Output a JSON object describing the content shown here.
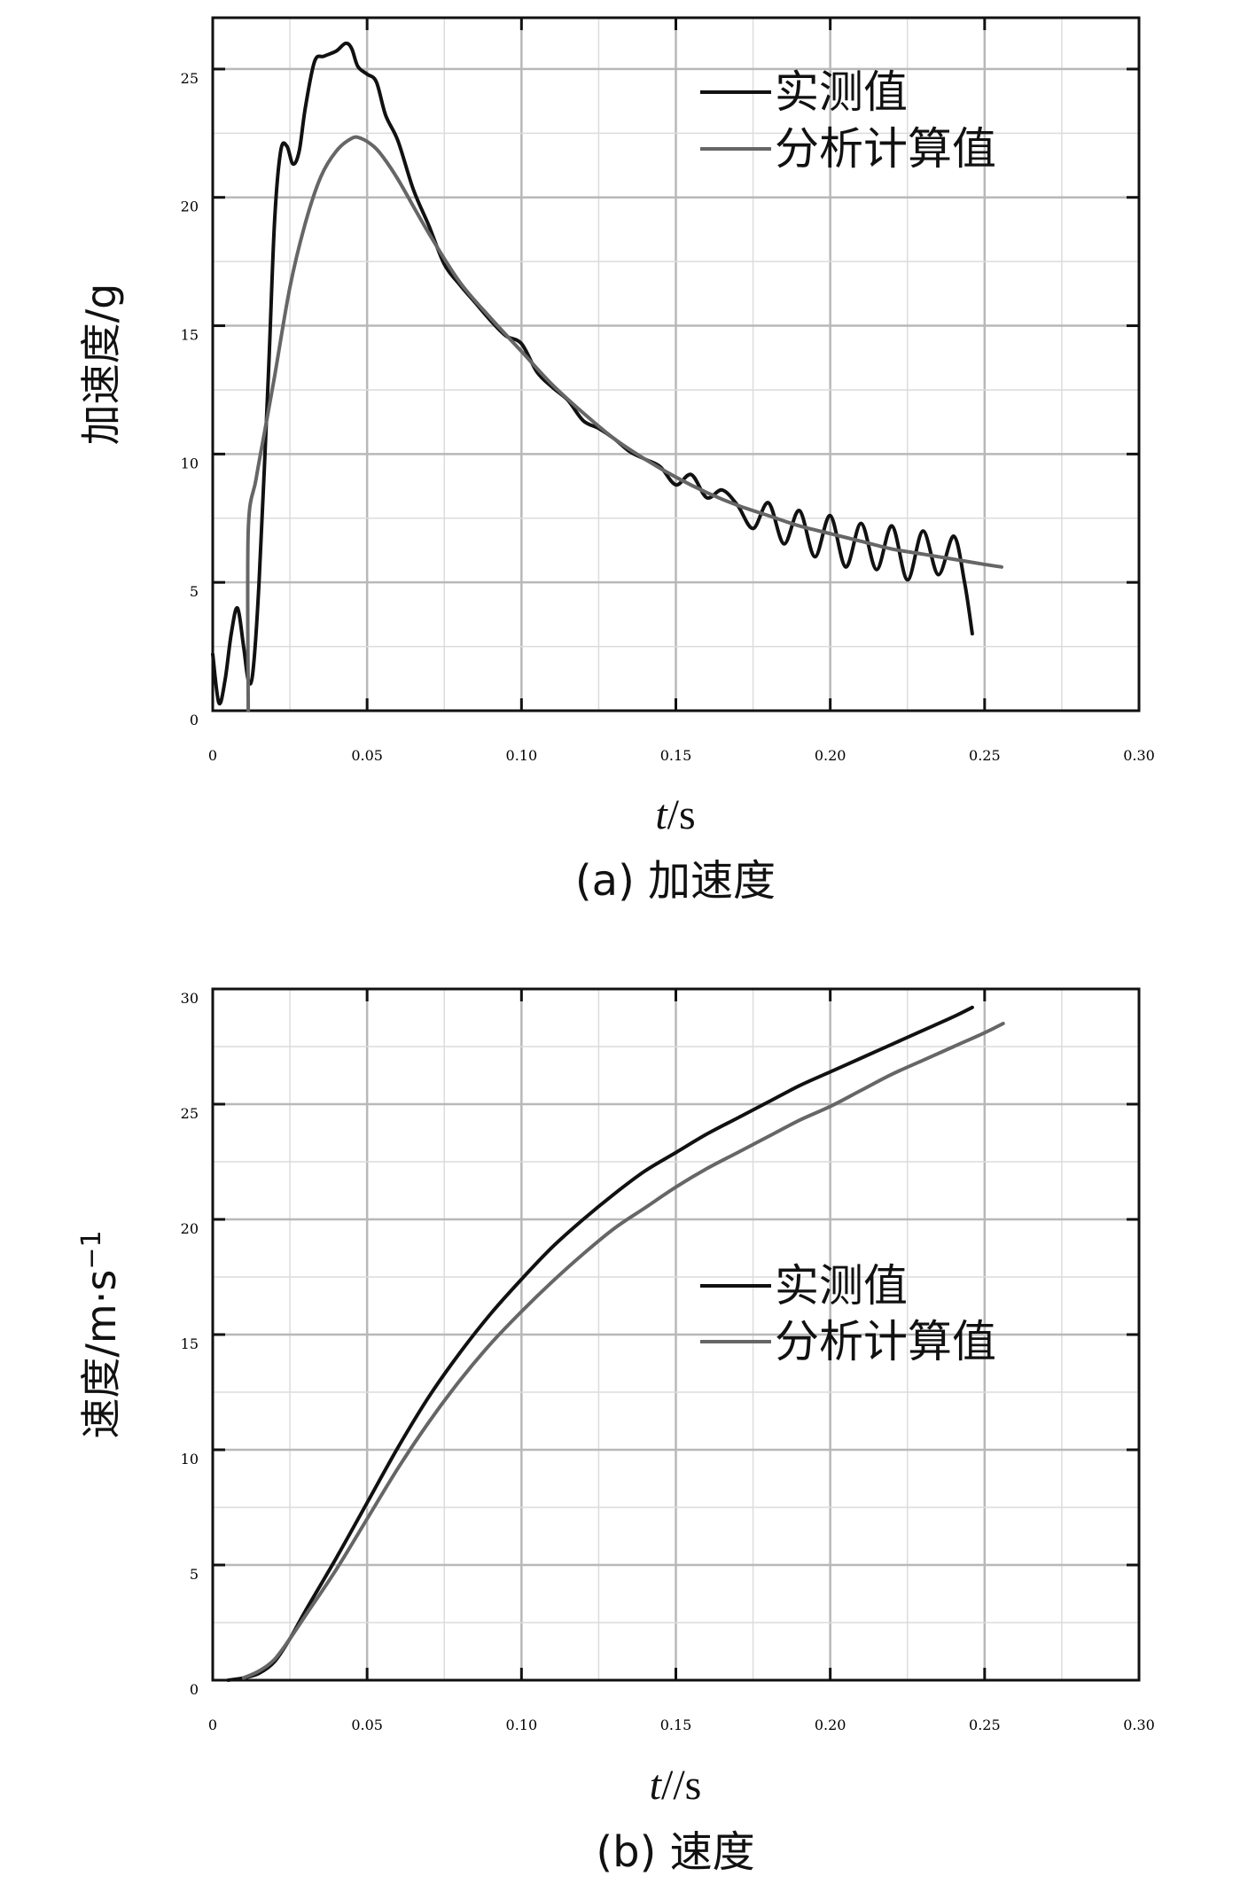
{
  "chart_data": [
    {
      "type": "line",
      "xlim": [
        0,
        0.3
      ],
      "ylim": [
        0,
        27
      ],
      "xticks": [
        0,
        0.05,
        0.1,
        0.15,
        0.2,
        0.25,
        0.3
      ],
      "xtick_labels": [
        "0",
        "0.05",
        "0.10",
        "0.15",
        "0.20",
        "0.25",
        "0.30"
      ],
      "yticks": [
        0,
        5,
        10,
        15,
        20,
        25
      ],
      "ytick_labels": [
        "0",
        "5",
        "10",
        "15",
        "20",
        "25"
      ],
      "ylabel": "加速度/g",
      "xlabel_italic": "t",
      "xlabel_rest": "/s",
      "caption": "(a) 加速度",
      "legend_position": "top-right",
      "grid": true,
      "series": [
        {
          "name": "实测值",
          "color": "#111111",
          "x": [
            0.0,
            0.002,
            0.004,
            0.006,
            0.008,
            0.01,
            0.0115,
            0.013,
            0.015,
            0.018,
            0.02,
            0.022,
            0.024,
            0.026,
            0.028,
            0.03,
            0.033,
            0.036,
            0.04,
            0.043,
            0.045,
            0.047,
            0.05,
            0.053,
            0.056,
            0.06,
            0.065,
            0.07,
            0.075,
            0.08,
            0.085,
            0.09,
            0.095,
            0.1,
            0.105,
            0.11,
            0.115,
            0.12,
            0.125,
            0.13,
            0.135,
            0.14,
            0.145,
            0.15,
            0.155,
            0.16,
            0.165,
            0.17,
            0.175,
            0.18,
            0.185,
            0.19,
            0.195,
            0.2,
            0.205,
            0.21,
            0.215,
            0.22,
            0.225,
            0.23,
            0.235,
            0.24,
            0.2435,
            0.246
          ],
          "y": [
            2.2,
            0.3,
            1.2,
            3.0,
            4.0,
            2.5,
            1.2,
            1.5,
            5.0,
            13.0,
            19.0,
            21.8,
            22.0,
            21.3,
            21.8,
            23.5,
            25.3,
            25.5,
            25.7,
            26.0,
            25.8,
            25.1,
            24.8,
            24.5,
            23.2,
            22.2,
            20.3,
            18.9,
            17.4,
            16.6,
            15.9,
            15.2,
            14.6,
            14.3,
            13.2,
            12.6,
            12.1,
            11.3,
            11.0,
            10.6,
            10.1,
            9.8,
            9.5,
            8.8,
            9.2,
            8.3,
            8.6,
            8.0,
            7.1,
            8.1,
            6.5,
            7.8,
            6.0,
            7.6,
            5.6,
            7.3,
            5.5,
            7.2,
            5.1,
            7.0,
            5.3,
            6.8,
            5.0,
            3.0
          ]
        },
        {
          "name": "分析计算值",
          "color": "#666666",
          "x": [
            0.0115,
            0.0115,
            0.014,
            0.017,
            0.02,
            0.025,
            0.03,
            0.035,
            0.04,
            0.045,
            0.048,
            0.052,
            0.055,
            0.06,
            0.07,
            0.08,
            0.09,
            0.1,
            0.11,
            0.12,
            0.13,
            0.14,
            0.15,
            0.16,
            0.17,
            0.18,
            0.19,
            0.2,
            0.21,
            0.22,
            0.23,
            0.24,
            0.25,
            0.2555
          ],
          "y": [
            0,
            7.0,
            9.0,
            11.0,
            13.0,
            16.5,
            19.0,
            20.8,
            21.8,
            22.3,
            22.3,
            22.0,
            21.6,
            20.7,
            18.6,
            16.7,
            15.3,
            14.0,
            12.7,
            11.6,
            10.6,
            9.8,
            9.1,
            8.5,
            8.0,
            7.6,
            7.2,
            6.9,
            6.6,
            6.3,
            6.1,
            5.9,
            5.7,
            5.6
          ]
        }
      ]
    },
    {
      "type": "line",
      "xlim": [
        0,
        0.3
      ],
      "ylim": [
        0,
        30
      ],
      "xticks": [
        0,
        0.05,
        0.1,
        0.15,
        0.2,
        0.25,
        0.3
      ],
      "xtick_labels": [
        "0",
        "0.05",
        "0.10",
        "0.15",
        "0.20",
        "0.25",
        "0.30"
      ],
      "yticks": [
        0,
        5,
        10,
        15,
        20,
        25,
        30
      ],
      "ytick_labels": [
        "0",
        "5",
        "10",
        "15",
        "20",
        "25",
        "30"
      ],
      "ylabel": "速度/m·s",
      "ylabel_superscript": "−1",
      "xlabel_italic": "t",
      "xlabel_rest": "//s",
      "caption": "(b) 速度",
      "legend_position": "center-right",
      "grid": true,
      "series": [
        {
          "name": "实测值",
          "color": "#111111",
          "x": [
            0.005,
            0.01,
            0.015,
            0.02,
            0.025,
            0.03,
            0.04,
            0.05,
            0.06,
            0.07,
            0.08,
            0.09,
            0.1,
            0.11,
            0.12,
            0.13,
            0.14,
            0.15,
            0.16,
            0.17,
            0.18,
            0.19,
            0.2,
            0.21,
            0.22,
            0.23,
            0.24,
            0.246
          ],
          "y": [
            0,
            0.1,
            0.3,
            0.8,
            1.8,
            3.0,
            5.3,
            7.7,
            10.1,
            12.3,
            14.2,
            15.9,
            17.4,
            18.8,
            20.0,
            21.1,
            22.1,
            22.9,
            23.7,
            24.4,
            25.1,
            25.8,
            26.4,
            27.0,
            27.6,
            28.2,
            28.8,
            29.2
          ]
        },
        {
          "name": "分析计算值",
          "color": "#666666",
          "x": [
            0.01,
            0.015,
            0.02,
            0.025,
            0.03,
            0.04,
            0.05,
            0.06,
            0.07,
            0.08,
            0.09,
            0.1,
            0.11,
            0.12,
            0.13,
            0.14,
            0.15,
            0.16,
            0.17,
            0.18,
            0.19,
            0.2,
            0.21,
            0.22,
            0.23,
            0.24,
            0.25,
            0.256
          ],
          "y": [
            0.1,
            0.4,
            0.9,
            1.8,
            2.8,
            4.8,
            7.0,
            9.2,
            11.2,
            13.0,
            14.6,
            16.0,
            17.3,
            18.5,
            19.6,
            20.5,
            21.4,
            22.2,
            22.9,
            23.6,
            24.3,
            24.9,
            25.6,
            26.3,
            26.9,
            27.5,
            28.1,
            28.5
          ]
        }
      ]
    }
  ]
}
